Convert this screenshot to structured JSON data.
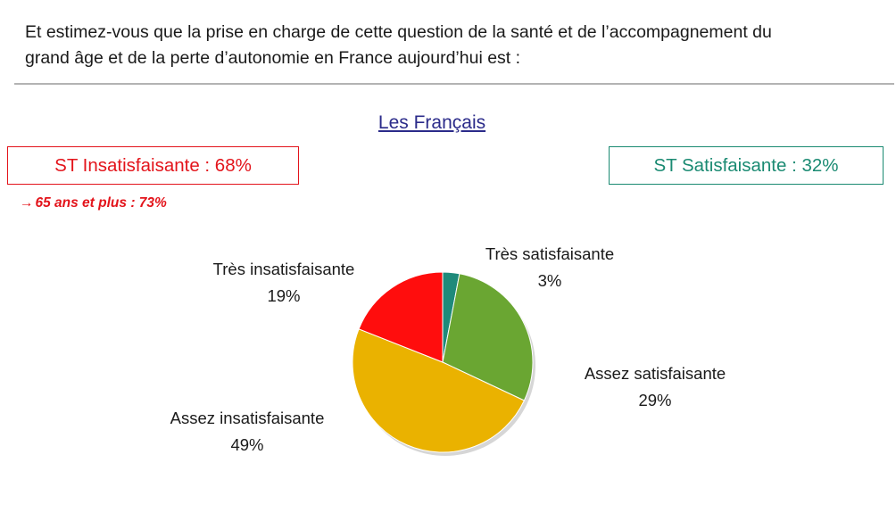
{
  "question": {
    "line1": "Et estimez-vous que la prise en charge de cette question de la santé et de l’accompagnement du",
    "line2": "grand âge et de la perte d’autonomie en France aujourd’hui est :"
  },
  "group_title": "Les Français",
  "summary": {
    "negative": "ST Insatisfaisante : 68%",
    "positive": "ST Satisfaisante : 32%",
    "subnote": "65 ans et plus : 73%",
    "subnote_arrow": "→"
  },
  "colors": {
    "negative": "#e3141b",
    "positive": "#1a8a72"
  },
  "chart_data": {
    "type": "pie",
    "title": "",
    "slices": [
      {
        "label": "Très satisfaisante",
        "value": 3,
        "display": "3%",
        "color": "#1f8a7a"
      },
      {
        "label": "Assez satisfaisante",
        "value": 29,
        "display": "29%",
        "color": "#6aa632"
      },
      {
        "label": "Assez insatisfaisante",
        "value": 49,
        "display": "49%",
        "color": "#eab200"
      },
      {
        "label": "Très insatisfaisante",
        "value": 19,
        "display": "19%",
        "color": "#ff0d0d"
      }
    ],
    "start": "12 o'clock",
    "direction": "clockwise",
    "legend": "none"
  }
}
